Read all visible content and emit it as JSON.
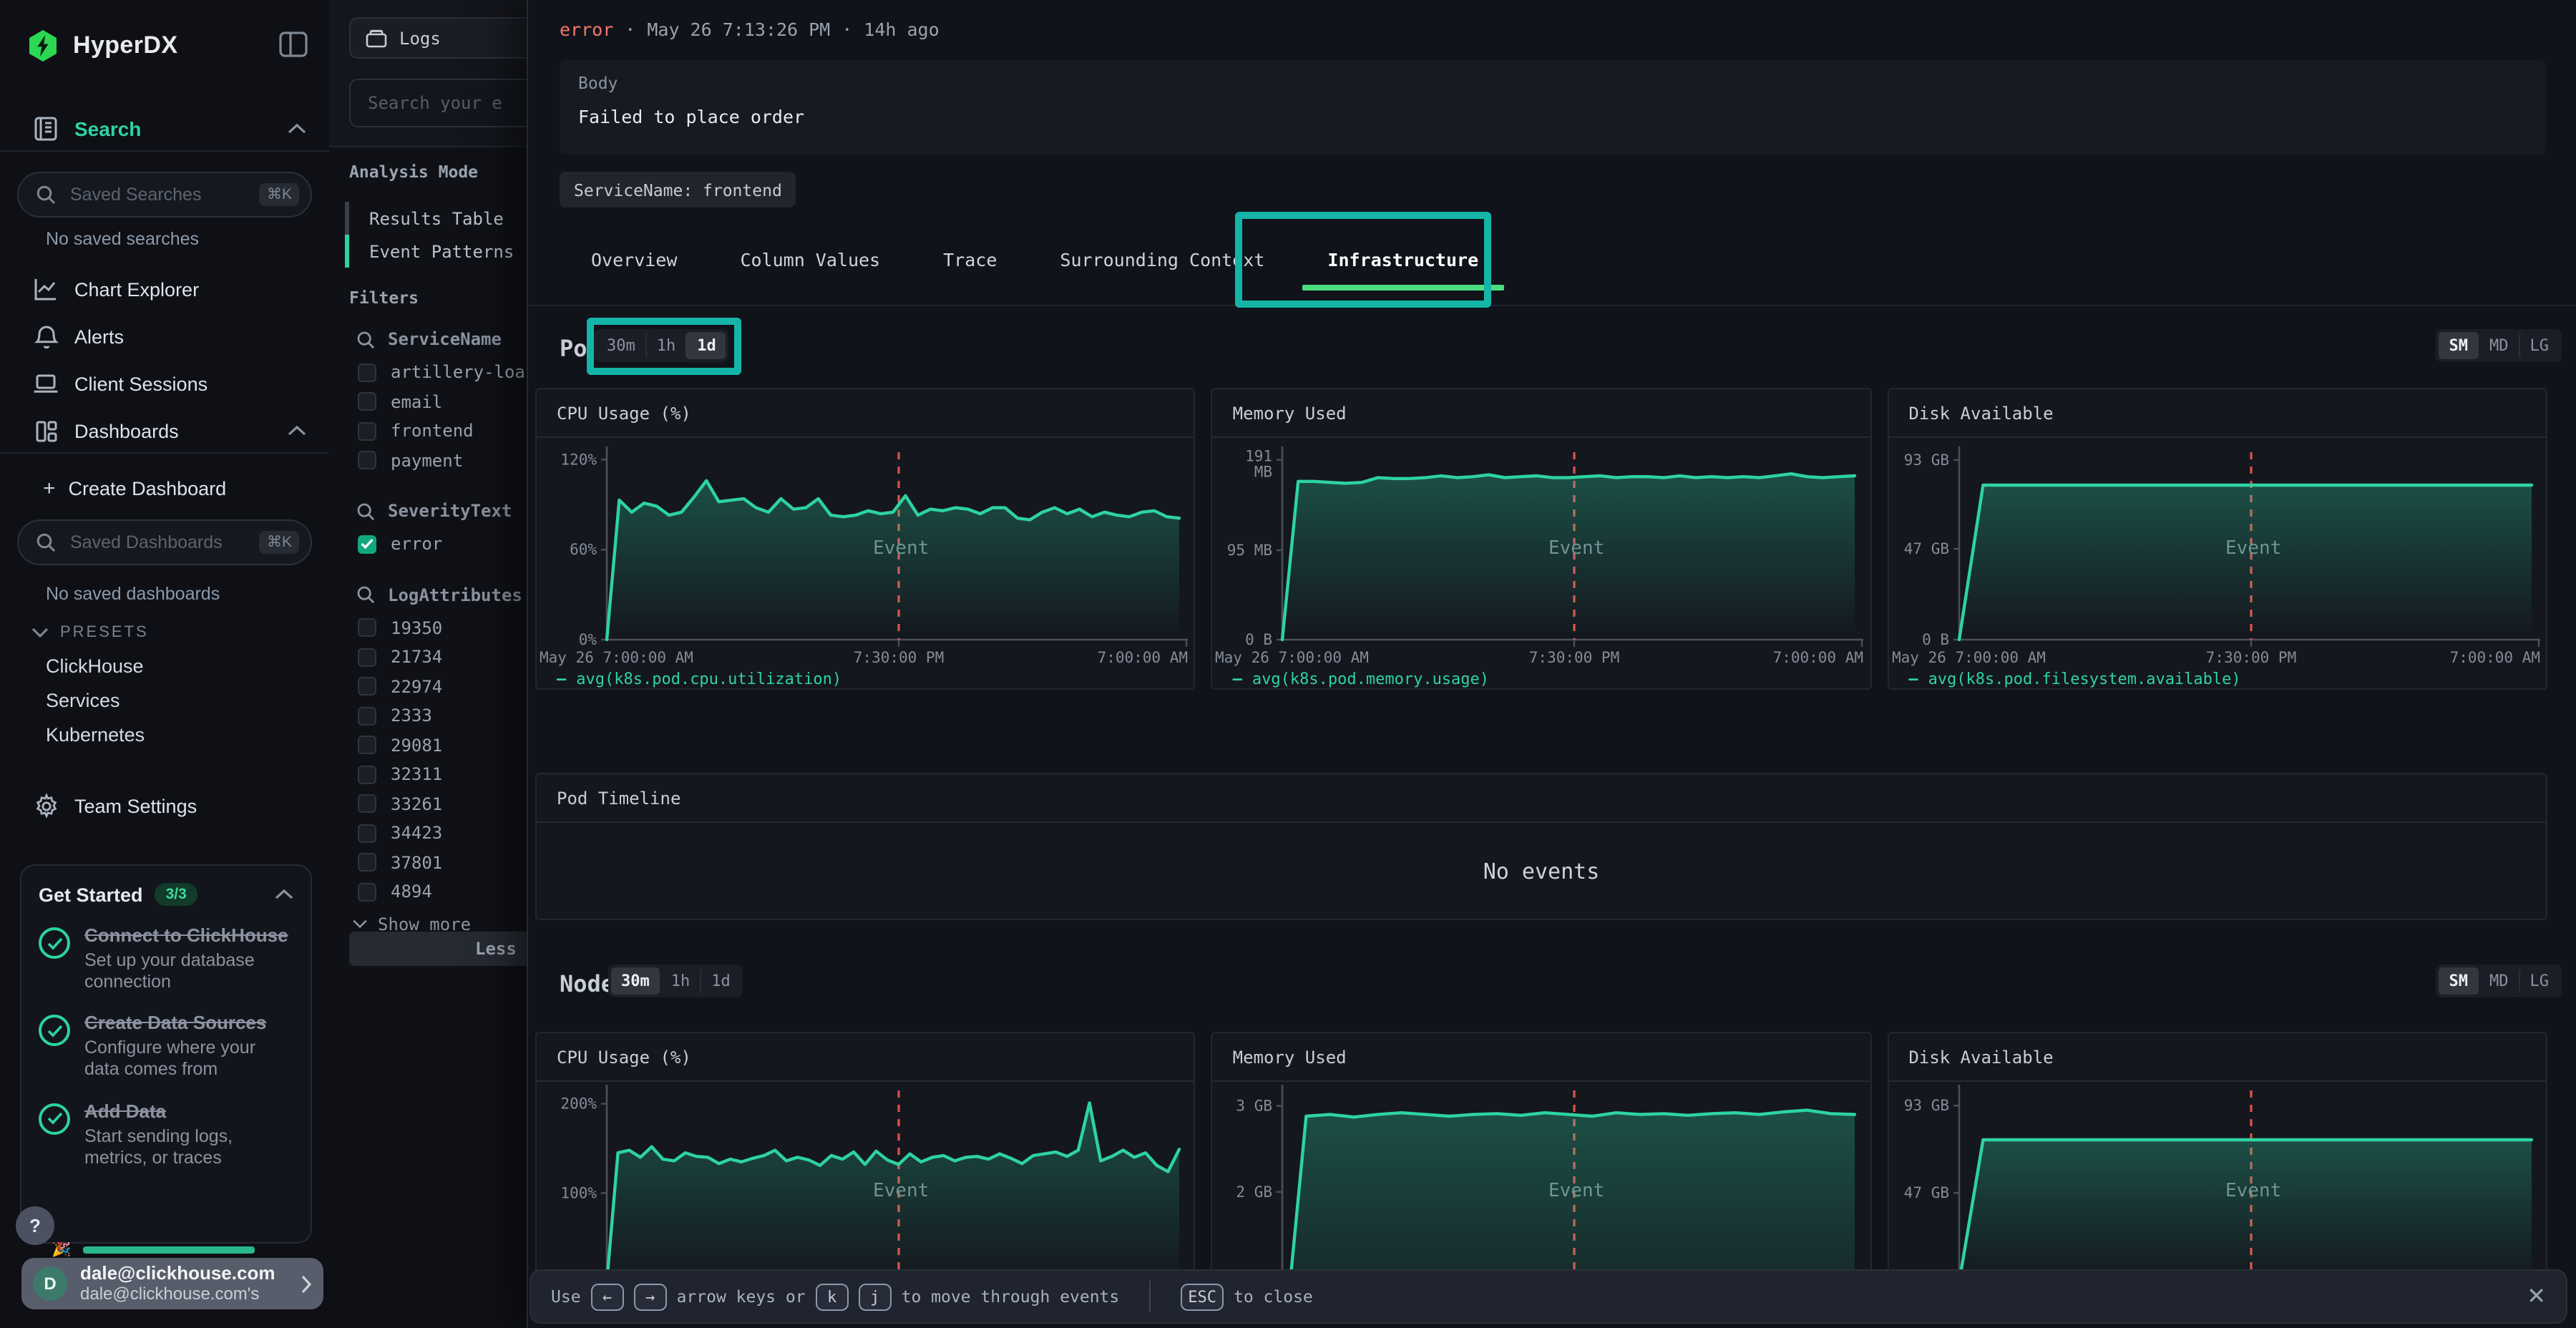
{
  "colors": {
    "accent": "#2ed3a2",
    "tab_underline": "#4ade80",
    "annotation": "#14b5a8",
    "error_text": "#f8756b",
    "event_line": "#e0534b",
    "checkbox_checked": "#12a87e"
  },
  "sidebar": {
    "logo_text": "HyperDX",
    "nav_search_label": "Search",
    "saved_searches_placeholder": "Saved Searches",
    "shortcut": "⌘K",
    "no_saved_searches": "No saved searches",
    "nav_items": [
      {
        "label": "Chart Explorer"
      },
      {
        "label": "Alerts"
      },
      {
        "label": "Client Sessions"
      },
      {
        "label": "Dashboards"
      }
    ],
    "create_dashboard_plus": "+",
    "create_dashboard_label": "Create Dashboard",
    "saved_dashboards_placeholder": "Saved Dashboards",
    "no_saved_dashboards": "No saved dashboards",
    "presets_label": "PRESETS",
    "preset_items": [
      "ClickHouse",
      "Services",
      "Kubernetes"
    ],
    "team_settings_label": "Team Settings",
    "get_started": {
      "title": "Get Started",
      "badge": "3/3",
      "items": [
        {
          "title": "Connect to ClickHouse",
          "desc": "Set up your database connection"
        },
        {
          "title": "Create Data Sources",
          "desc": "Configure where your data comes from"
        },
        {
          "title": "Add Data",
          "desc": "Start sending logs, metrics, or traces"
        }
      ]
    },
    "help_label": "?",
    "partial_item_emoji": "🎉",
    "user": {
      "initial": "D",
      "primary": "dale@clickhouse.com",
      "secondary": "dale@clickhouse.com's"
    }
  },
  "source_panel": {
    "source_label": "Logs",
    "search_placeholder": "Search your e",
    "analysis_mode_label": "Analysis Mode",
    "modes": [
      {
        "label": "Results Table",
        "active": false
      },
      {
        "label": "Event Patterns",
        "active": true
      }
    ],
    "filters_label": "Filters",
    "groups": [
      {
        "name": "ServiceName",
        "options": [
          {
            "label": "artillery-loa",
            "checked": false
          },
          {
            "label": "email",
            "checked": false
          },
          {
            "label": "frontend",
            "checked": false
          },
          {
            "label": "payment",
            "checked": false
          }
        ]
      },
      {
        "name": "SeverityText",
        "options": [
          {
            "label": "error",
            "checked": true
          }
        ]
      },
      {
        "name": "LogAttributes",
        "options": [
          {
            "label": "19350",
            "checked": false
          },
          {
            "label": "21734",
            "checked": false
          },
          {
            "label": "22974",
            "checked": false
          },
          {
            "label": "2333",
            "checked": false
          },
          {
            "label": "29081",
            "checked": false
          },
          {
            "label": "32311",
            "checked": false
          },
          {
            "label": "33261",
            "checked": false
          },
          {
            "label": "34423",
            "checked": false
          },
          {
            "label": "37801",
            "checked": false
          },
          {
            "label": "4894",
            "checked": false
          }
        ]
      }
    ],
    "show_more_label": "Show more",
    "less_filters_label": "Less fil"
  },
  "event_panel": {
    "severity": "error",
    "dot": "·",
    "timestamp": "May 26 7:13:26 PM",
    "ago": "14h ago",
    "body_label": "Body",
    "body_text": "Failed to place order",
    "service_tag": "ServiceName: frontend",
    "tabs": [
      "Overview",
      "Column Values",
      "Trace",
      "Surrounding Context",
      "Infrastructure"
    ],
    "active_tab": "Infrastructure",
    "pod": {
      "label": "Pod",
      "ranges": [
        "30m",
        "1h",
        "1d"
      ],
      "active_range": "1d",
      "sizes": [
        "SM",
        "MD",
        "LG"
      ],
      "active_size": "SM"
    },
    "timeline": {
      "title": "Pod Timeline",
      "empty_text": "No events"
    },
    "node": {
      "label": "Node",
      "ranges": [
        "30m",
        "1h",
        "1d"
      ],
      "active_range": "30m",
      "sizes": [
        "SM",
        "MD",
        "LG"
      ],
      "active_size": "SM"
    },
    "footer": {
      "use": "Use",
      "arrow_left": "←",
      "arrow_right": "→",
      "or_text": "arrow keys or",
      "key_k": "k",
      "key_j": "j",
      "move_text": "to move through events",
      "esc": "ESC",
      "close_text": "to close",
      "close_icon": "✕"
    }
  },
  "chart_data": [
    {
      "id": "pod-cpu",
      "panel": "pod",
      "type": "line",
      "title": "CPU Usage (%)",
      "legend": "avg(k8s.pod.cpu.utilization)",
      "ylim": [
        0,
        125
      ],
      "yticks": [
        {
          "v": 0,
          "label": "0%"
        },
        {
          "v": 60,
          "label": "60%"
        },
        {
          "v": 120,
          "label": "120%"
        }
      ],
      "xticks": [
        "May 26 7:00:00 AM",
        "7:30:00 PM",
        "7:00:00 AM"
      ],
      "event_label": "Event",
      "event_frac": 0.51,
      "values": [
        0,
        93,
        85,
        91,
        89,
        83,
        85,
        95,
        106,
        92,
        93,
        94,
        88,
        85,
        94,
        87,
        88,
        94,
        83,
        82,
        83,
        86,
        84,
        85,
        96,
        83,
        87,
        86,
        88,
        87,
        84,
        88,
        88,
        81,
        80,
        85,
        88,
        84,
        87,
        82,
        85,
        83,
        82,
        85,
        86,
        82,
        81
      ]
    },
    {
      "id": "pod-memory",
      "panel": "pod",
      "type": "line",
      "title": "Memory Used",
      "legend": "avg(k8s.pod.memory.usage)",
      "ylim": [
        0,
        199
      ],
      "yticks": [
        {
          "v": 0,
          "label": "0 B"
        },
        {
          "v": 95,
          "label": "95 MB"
        },
        {
          "v": 191,
          "label": "191 MB",
          "stack": true
        }
      ],
      "xticks": [
        "May 26 7:00:00 AM",
        "7:30:00 PM",
        "7:00:00 AM"
      ],
      "event_label": "Event",
      "event_frac": 0.51,
      "values": [
        0,
        168,
        168,
        167,
        166,
        167,
        172,
        171,
        171,
        172,
        174,
        172,
        173,
        175,
        172,
        173,
        174,
        172,
        172,
        173,
        174,
        172,
        173,
        173,
        172,
        174,
        172,
        173,
        172,
        173,
        172,
        174,
        176,
        173,
        172,
        173,
        174
      ]
    },
    {
      "id": "pod-disk",
      "panel": "pod",
      "type": "line",
      "title": "Disk Available",
      "legend": "avg(k8s.pod.filesystem.available)",
      "ylim": [
        0,
        97
      ],
      "yticks": [
        {
          "v": 0,
          "label": "0 B"
        },
        {
          "v": 47,
          "label": "47 GB"
        },
        {
          "v": 93,
          "label": "93 GB"
        }
      ],
      "xticks": [
        "May 26 7:00:00 AM",
        "7:30:00 PM",
        "7:00:00 AM"
      ],
      "event_label": "Event",
      "event_frac": 0.51,
      "values": [
        0,
        80,
        80,
        80,
        80,
        80,
        80,
        80,
        80,
        80,
        80,
        80,
        80,
        80,
        80,
        80,
        80,
        80,
        80,
        80,
        80,
        80,
        80,
        80,
        80
      ]
    },
    {
      "id": "node-cpu",
      "panel": "node",
      "type": "line",
      "title": "CPU Usage (%)",
      "legend": null,
      "ylim": [
        0,
        215
      ],
      "yticks": [
        {
          "v": 100,
          "label": "100%"
        },
        {
          "v": 200,
          "label": "200%"
        }
      ],
      "xticks": [],
      "event_label": "Event",
      "event_frac": 0.51,
      "values": [
        0,
        145,
        148,
        140,
        152,
        138,
        136,
        145,
        141,
        140,
        133,
        138,
        135,
        139,
        142,
        148,
        136,
        140,
        137,
        131,
        142,
        138,
        146,
        132,
        147,
        137,
        132,
        144,
        135,
        140,
        142,
        136,
        140,
        141,
        138,
        144,
        139,
        133,
        142,
        144,
        146,
        141,
        148,
        201,
        136,
        141,
        148,
        140,
        145,
        131,
        124,
        149
      ]
    },
    {
      "id": "node-memory",
      "panel": "node",
      "type": "line",
      "title": "Memory Used",
      "legend": null,
      "ylim": [
        0,
        3.18
      ],
      "virt_h": 197,
      "yticks": [
        {
          "v": 2,
          "label": "2 GB"
        },
        {
          "v": 3,
          "label": "3 GB"
        }
      ],
      "xticks": [],
      "event_label": "Event",
      "event_frac": 0.51,
      "values": [
        0,
        2.88,
        2.9,
        2.87,
        2.9,
        2.92,
        2.9,
        2.88,
        2.9,
        2.91,
        2.89,
        2.92,
        2.9,
        2.88,
        2.92,
        2.9,
        2.91,
        2.89,
        2.91,
        2.92,
        2.9,
        2.93,
        2.95,
        2.91,
        2.9
      ]
    },
    {
      "id": "node-disk",
      "panel": "node",
      "type": "line",
      "title": "Disk Available",
      "legend": null,
      "ylim": [
        0,
        101
      ],
      "yticks": [
        {
          "v": 47,
          "label": "47 GB"
        },
        {
          "v": 93,
          "label": "93 GB"
        }
      ],
      "xticks": [],
      "event_label": "Event",
      "event_frac": 0.51,
      "values": [
        0,
        75,
        75,
        75,
        75,
        75,
        75,
        75,
        75,
        75,
        75,
        75,
        75,
        75,
        75,
        75,
        75,
        75,
        75,
        75,
        75,
        75,
        75,
        75,
        75
      ]
    }
  ]
}
